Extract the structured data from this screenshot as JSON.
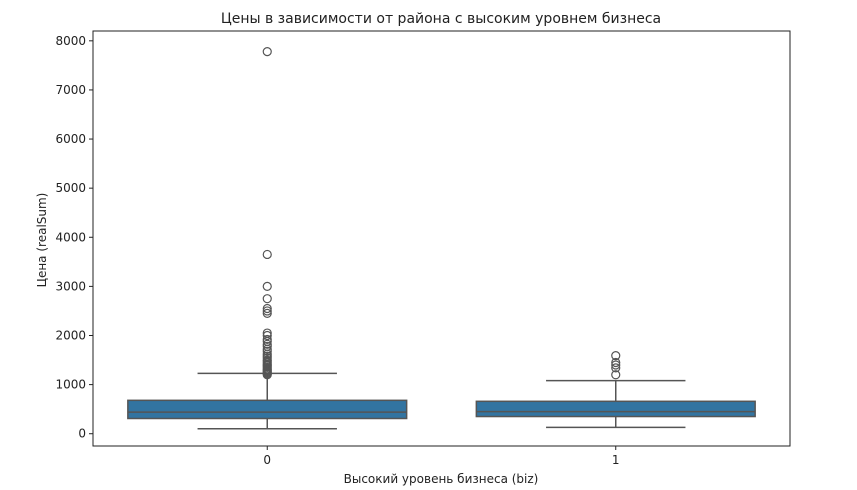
{
  "chart_data": {
    "type": "box",
    "title": "Цены в зависимости от района с высоким уровнем бизнеса",
    "xlabel": "Высокий уровень бизнеса (biz)",
    "ylabel": "Цена (realSum)",
    "ylim": [
      -250,
      8200
    ],
    "yticks": [
      0,
      1000,
      2000,
      3000,
      4000,
      5000,
      6000,
      7000,
      8000
    ],
    "grid": false,
    "legend": "none",
    "box_color": "#3274a1",
    "line_color": "#555555",
    "categories": [
      "0",
      "1"
    ],
    "boxes": [
      {
        "category": "0",
        "whisker_low": 100,
        "q1": 310,
        "median": 440,
        "q3": 680,
        "whisker_high": 1230,
        "outliers": [
          1200,
          1220,
          1240,
          1260,
          1280,
          1300,
          1320,
          1350,
          1380,
          1400,
          1420,
          1450,
          1480,
          1500,
          1540,
          1580,
          1620,
          1680,
          1720,
          1780,
          1820,
          1880,
          1920,
          2000,
          2050,
          2450,
          2500,
          2550,
          2750,
          3000,
          3650,
          7780
        ]
      },
      {
        "category": "1",
        "whisker_low": 130,
        "q1": 350,
        "median": 450,
        "q3": 660,
        "whisker_high": 1080,
        "outliers": [
          1200,
          1340,
          1400,
          1450,
          1590
        ]
      }
    ]
  }
}
